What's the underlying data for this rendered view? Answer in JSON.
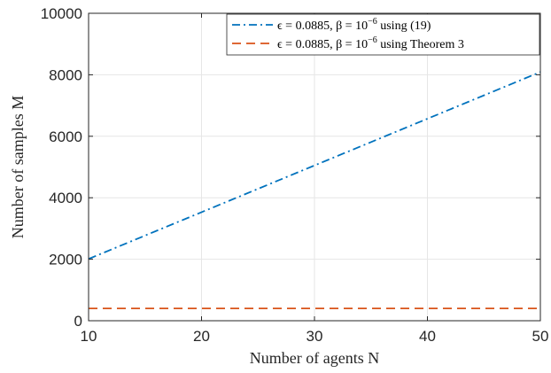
{
  "chart_data": {
    "type": "line",
    "xlabel": "Number of agents N",
    "ylabel": "Number of samples M",
    "xlim": [
      10,
      50
    ],
    "ylim": [
      0,
      10000
    ],
    "xticks": [
      "10",
      "20",
      "30",
      "40",
      "50"
    ],
    "yticks": [
      "0",
      "2000",
      "4000",
      "6000",
      "8000",
      "10000"
    ],
    "grid": true,
    "legend_position": "top-right",
    "series": [
      {
        "name": "ϵ = 0.0885, β = 10⁻⁶ using (19)",
        "name_main": "ϵ = 0.0885, β = 10",
        "name_exp": "−6",
        "name_tail": " using (19)",
        "color": "#0072BD",
        "line_style": "dash-dot",
        "x": [
          10,
          50
        ],
        "y": [
          2010,
          8090
        ]
      },
      {
        "name": "ϵ = 0.0885, β = 10⁻⁶ using Theorem 3",
        "name_main": "ϵ = 0.0885, β = 10",
        "name_exp": "−6",
        "name_tail": " using Theorem 3",
        "color": "#D95319",
        "line_style": "dashed",
        "x": [
          10,
          50
        ],
        "y": [
          400,
          400
        ]
      }
    ]
  }
}
